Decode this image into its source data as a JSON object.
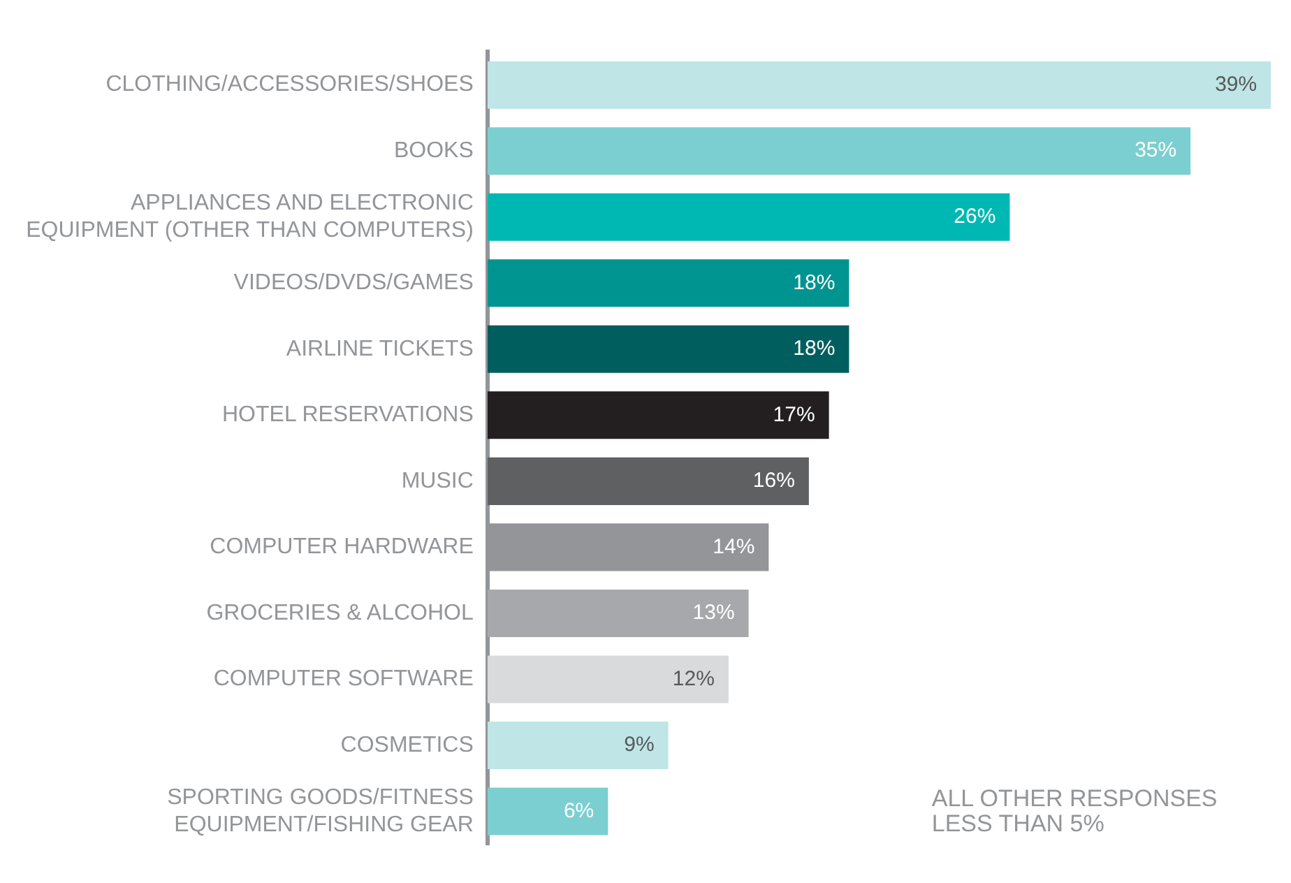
{
  "chart_data": {
    "type": "bar",
    "orientation": "horizontal",
    "categories": [
      "CLOTHING/ACCESSORIES/SHOES",
      "BOOKS",
      "APPLIANCES AND ELECTRONIC EQUIPMENT (OTHER THAN COMPUTERS)",
      "VIDEOS/DVDS/GAMES",
      "AIRLINE TICKETS",
      "HOTEL RESERVATIONS",
      "MUSIC",
      "COMPUTER HARDWARE",
      "GROCERIES & ALCOHOL",
      "COMPUTER SOFTWARE",
      "COSMETICS",
      "SPORTING GOODS/FITNESS EQUIPMENT/FISHING GEAR"
    ],
    "values": [
      39,
      35,
      26,
      18,
      18,
      17,
      16,
      14,
      13,
      12,
      9,
      6
    ],
    "value_labels": [
      "39%",
      "35%",
      "26%",
      "18%",
      "18%",
      "17%",
      "16%",
      "14%",
      "13%",
      "12%",
      "9%",
      "6%"
    ],
    "colors": [
      "#bfe5e6",
      "#7ccfd1",
      "#00b8b3",
      "#009490",
      "#005f5e",
      "#231f20",
      "#5f6062",
      "#939598",
      "#a6a8ab",
      "#d9dadb",
      "#bfe5e6",
      "#7ccfd1"
    ],
    "annotations": [
      "ALL OTHER RESPONSES LESS THAN 5%"
    ],
    "grid": false,
    "legend": false
  }
}
